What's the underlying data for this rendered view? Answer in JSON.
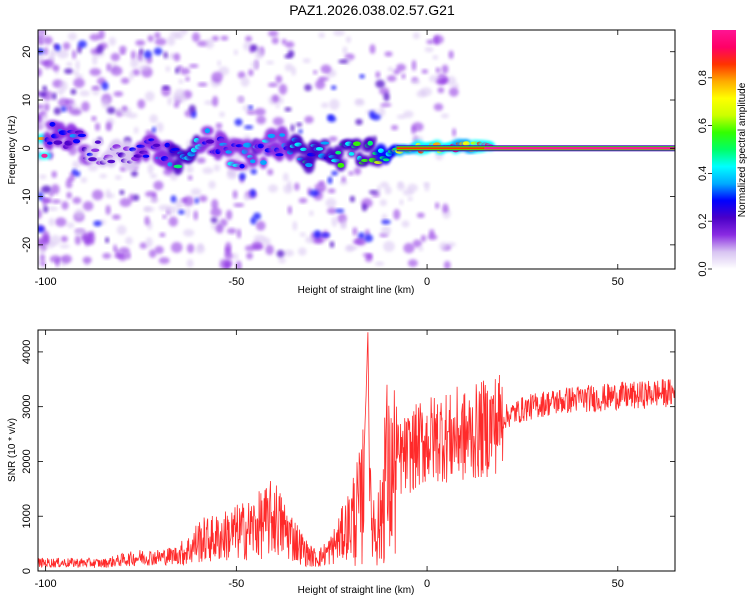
{
  "title": "PAZ1.2026.038.02.57.G21",
  "chart_data": [
    {
      "type": "heatmap",
      "name": "spectrogram",
      "xlabel": "Height of straight line (km)",
      "ylabel": "Frequency (Hz)",
      "xlim": [
        -102,
        65
      ],
      "ylim": [
        -25,
        24.5
      ],
      "xticks": [
        -100,
        -50,
        0,
        50
      ],
      "yticks": [
        -20,
        -10,
        0,
        10,
        20
      ],
      "colorbar": {
        "label": "Normalized spectral amplitude",
        "range": [
          0,
          1
        ],
        "ticks": [
          "0.0",
          "0.2",
          "0.4",
          "0.6",
          "0.8"
        ],
        "tick_values": [
          0.0,
          0.2,
          0.4,
          0.6,
          0.8
        ],
        "colors": [
          "#ffffff",
          "#d8c4f2",
          "#8a2be2",
          "#4a00c8",
          "#0000ff",
          "#00aaff",
          "#00ffff",
          "#00ff66",
          "#33ff00",
          "#ccff00",
          "#ffff00",
          "#ffaa00",
          "#ff3300",
          "#ff0066",
          "#ff1493"
        ]
      },
      "centerline": [
        {
          "x": -100,
          "freq": 3.5,
          "amp": 0.35
        },
        {
          "x": -95,
          "freq": 2.5,
          "amp": 0.3
        },
        {
          "x": -90,
          "freq": 0.5,
          "amp": 0.25
        },
        {
          "x": -85,
          "freq": -1.5,
          "amp": 0.2
        },
        {
          "x": -80,
          "freq": -0.5,
          "amp": 0.2
        },
        {
          "x": -75,
          "freq": -1.0,
          "amp": 0.25
        },
        {
          "x": -72,
          "freq": -0.5,
          "amp": 0.3
        },
        {
          "x": -67,
          "freq": -1.8,
          "amp": 0.4
        },
        {
          "x": -62,
          "freq": -1.5,
          "amp": 0.45
        },
        {
          "x": -57,
          "freq": 1.5,
          "amp": 0.3
        },
        {
          "x": -52,
          "freq": -1.0,
          "amp": 0.35
        },
        {
          "x": -45,
          "freq": -2.0,
          "amp": 0.4
        },
        {
          "x": -40,
          "freq": 1.0,
          "amp": 0.35
        },
        {
          "x": -35,
          "freq": 0.0,
          "amp": 0.4
        },
        {
          "x": -30,
          "freq": -1.5,
          "amp": 0.4
        },
        {
          "x": -25,
          "freq": -1.0,
          "amp": 0.45
        },
        {
          "x": -20,
          "freq": -1.5,
          "amp": 0.5
        },
        {
          "x": -15,
          "freq": -0.5,
          "amp": 0.5
        },
        {
          "x": -10,
          "freq": -0.5,
          "amp": 0.6
        },
        {
          "x": -5,
          "freq": 0.0,
          "amp": 0.85
        },
        {
          "x": 0,
          "freq": 0.0,
          "amp": 0.9
        },
        {
          "x": 5,
          "freq": 0.0,
          "amp": 0.9
        },
        {
          "x": 10,
          "freq": 0.5,
          "amp": 0.85
        },
        {
          "x": 15,
          "freq": 0.2,
          "amp": 0.9
        },
        {
          "x": 20,
          "freq": 0.0,
          "amp": 0.95
        },
        {
          "x": 30,
          "freq": 0.0,
          "amp": 0.95
        },
        {
          "x": 40,
          "freq": 0.0,
          "amp": 0.95
        },
        {
          "x": 50,
          "freq": 0.0,
          "amp": 0.95
        },
        {
          "x": 65,
          "freq": 0.0,
          "amp": 0.95
        }
      ]
    },
    {
      "type": "line",
      "name": "snr",
      "xlabel": "Height of straight line (km)",
      "ylabel": "SNR (10 * v/v)",
      "xlim": [
        -102,
        65
      ],
      "ylim": [
        0,
        4400
      ],
      "xticks": [
        -100,
        -50,
        0,
        50
      ],
      "yticks": [
        0,
        1000,
        2000,
        3000,
        4000
      ],
      "color": "#ff2a2a",
      "series": [
        {
          "name": "SNR",
          "x": [
            -102,
            -95,
            -90,
            -85,
            -80,
            -75,
            -70,
            -65,
            -62,
            -60,
            -55,
            -50,
            -47,
            -45,
            -42,
            -40,
            -38,
            -35,
            -32,
            -30,
            -28,
            -25,
            -22,
            -20,
            -18,
            -17,
            -16,
            -15.5,
            -15,
            -13,
            -12,
            -11,
            -10,
            -9,
            -8,
            -6,
            -4,
            -2,
            0,
            2,
            4,
            6,
            8,
            10,
            12,
            15,
            18,
            20,
            25,
            30,
            35,
            40,
            45,
            50,
            55,
            60,
            65
          ],
          "values": [
            150,
            150,
            150,
            140,
            200,
            250,
            250,
            300,
            400,
            550,
            600,
            700,
            750,
            800,
            900,
            1000,
            800,
            600,
            350,
            250,
            250,
            400,
            700,
            900,
            1100,
            1200,
            3200,
            4400,
            1000,
            800,
            900,
            2100,
            1600,
            1700,
            2000,
            2100,
            2200,
            2300,
            2400,
            2400,
            2500,
            2400,
            2500,
            2450,
            2500,
            2600,
            2700,
            2800,
            2950,
            3050,
            3100,
            3150,
            3150,
            3200,
            3200,
            3250,
            3250
          ]
        }
      ]
    }
  ]
}
